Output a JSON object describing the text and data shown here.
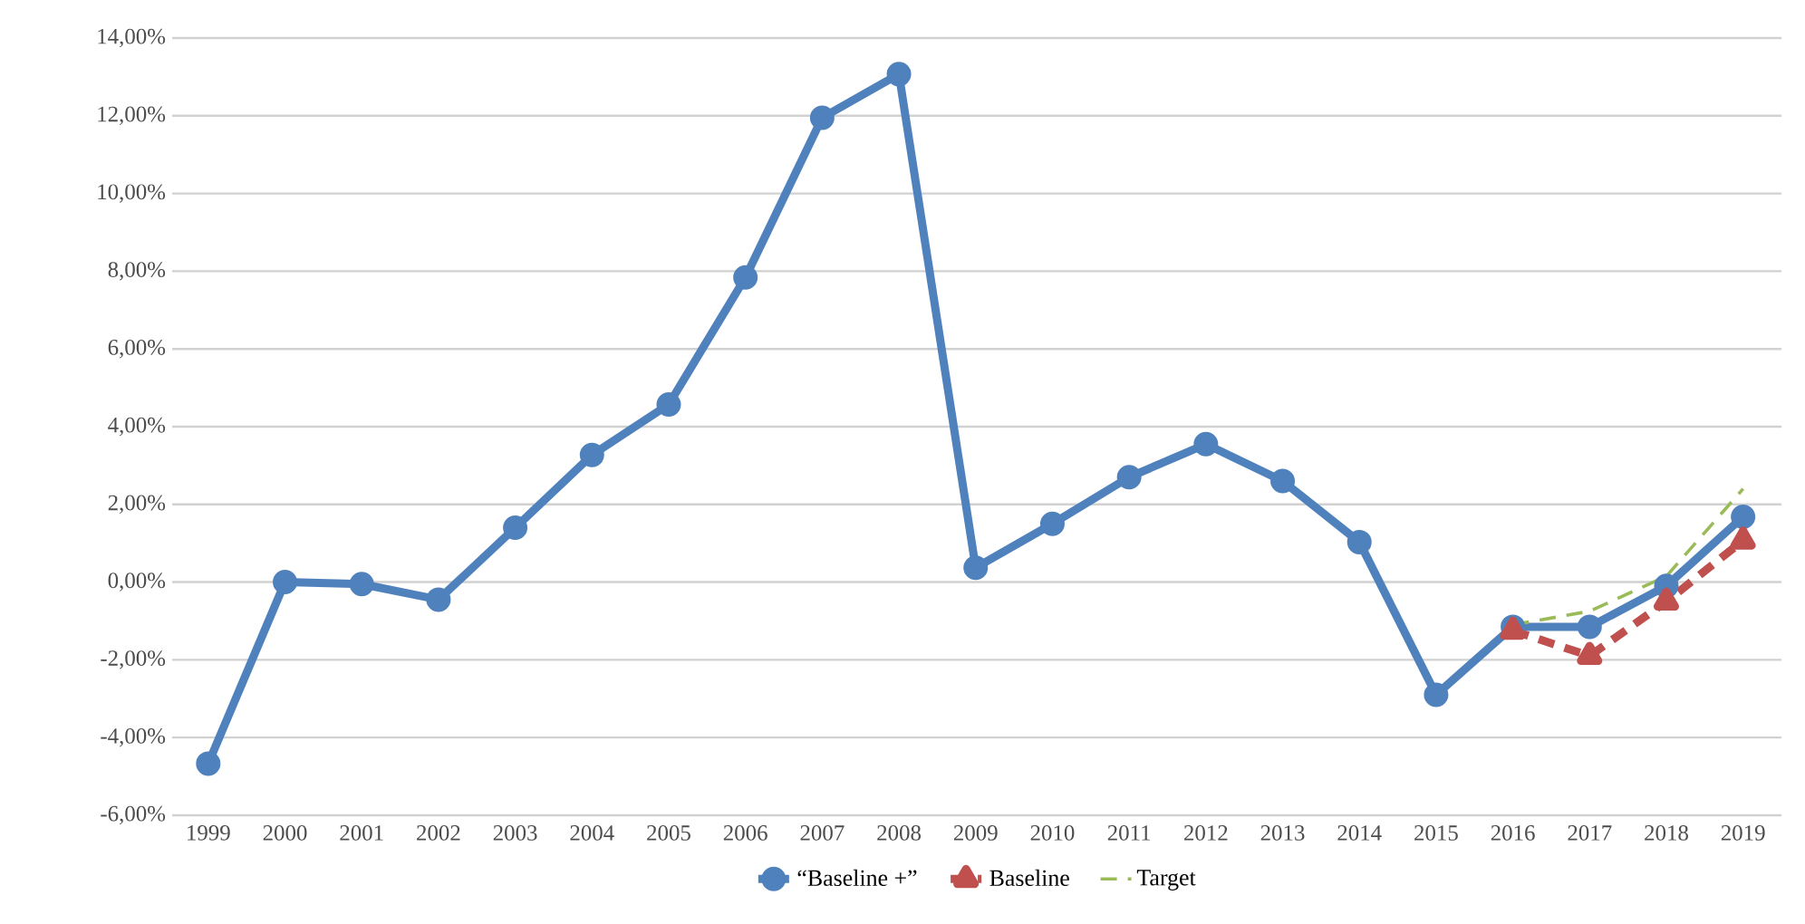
{
  "chart_data": {
    "type": "line",
    "categories": [
      "1999",
      "2000",
      "2001",
      "2002",
      "2003",
      "2004",
      "2005",
      "2006",
      "2007",
      "2008",
      "2009",
      "2010",
      "2011",
      "2012",
      "2013",
      "2014",
      "2015",
      "2016",
      "2017",
      "2018",
      "2019"
    ],
    "series": [
      {
        "name": "“Baseline +”",
        "color": "#4f81bd",
        "marker": "circle",
        "line_style": "solid",
        "values": [
          -4.67,
          0,
          -0.05,
          -0.45,
          1.4,
          3.27,
          4.57,
          7.84,
          11.95,
          13.07,
          0.37,
          1.5,
          2.7,
          3.55,
          2.6,
          1.03,
          -2.9,
          -1.15,
          -1.15,
          -0.1,
          1.68
        ]
      },
      {
        "name": "Baseline",
        "color": "#c0504d",
        "marker": "triangle",
        "line_style": "dashed",
        "values": [
          null,
          null,
          null,
          null,
          null,
          null,
          null,
          null,
          null,
          null,
          null,
          null,
          null,
          null,
          null,
          null,
          null,
          -1.25,
          -1.9,
          -0.5,
          1.07
        ]
      },
      {
        "name": "Target",
        "color": "#9bbb59",
        "marker": "none",
        "line_style": "dashed",
        "values": [
          null,
          null,
          null,
          null,
          null,
          null,
          null,
          null,
          null,
          null,
          null,
          null,
          null,
          null,
          null,
          null,
          null,
          -1.1,
          -0.75,
          0.15,
          2.4
        ]
      }
    ],
    "ylim": [
      -6,
      14
    ],
    "yticks": [
      {
        "value": -6,
        "label": "-6,00%"
      },
      {
        "value": -4,
        "label": "-4,00%"
      },
      {
        "value": -2,
        "label": "-2,00%"
      },
      {
        "value": 0,
        "label": "0,00%"
      },
      {
        "value": 2,
        "label": "2,00%"
      },
      {
        "value": 4,
        "label": "4,00%"
      },
      {
        "value": 6,
        "label": "6,00%"
      },
      {
        "value": 8,
        "label": "8,00%"
      },
      {
        "value": 10,
        "label": "10,00%"
      },
      {
        "value": 12,
        "label": "12,00%"
      },
      {
        "value": 14,
        "label": "14,00%"
      }
    ],
    "grid": "y",
    "legend": "bottom"
  }
}
